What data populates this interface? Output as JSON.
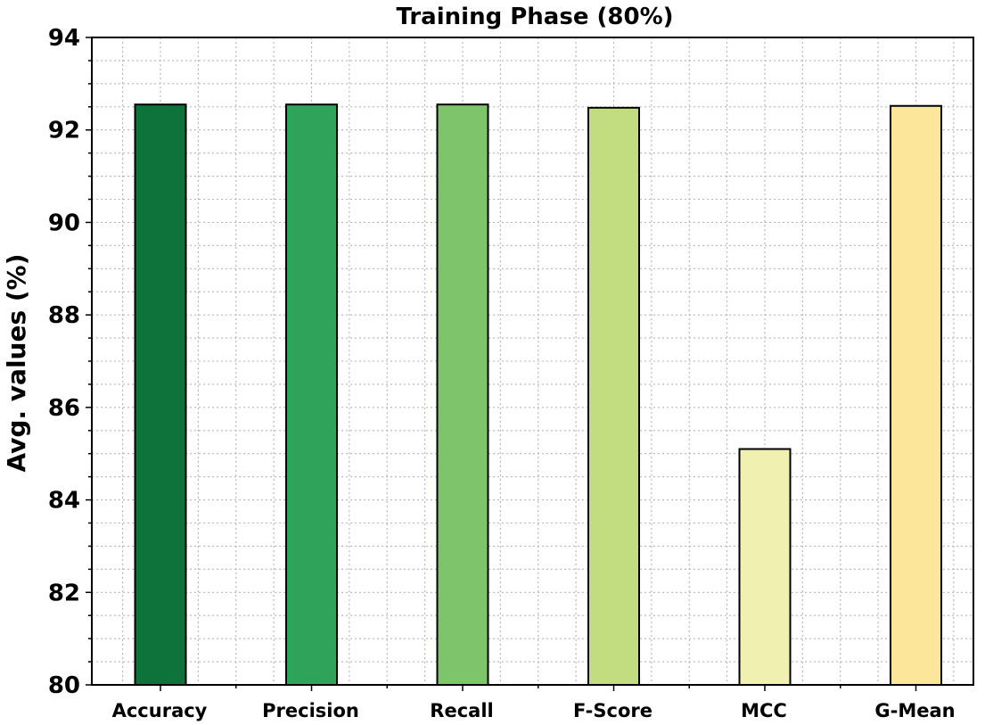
{
  "chart_data": {
    "type": "bar",
    "title": "Training Phase (80%)",
    "xlabel": "",
    "ylabel": "Avg. values (%)",
    "categories": [
      "Accuracy",
      "Precision",
      "Recall",
      "F-Score",
      "MCC",
      "G-Mean"
    ],
    "values": [
      92.55,
      92.55,
      92.55,
      92.48,
      85.1,
      92.52
    ],
    "colors": [
      "#0e733a",
      "#2fa35a",
      "#7ec46a",
      "#c2dc80",
      "#f0f0b0",
      "#fbe69a"
    ],
    "ylim": [
      80,
      94
    ],
    "yticks": [
      80,
      82,
      84,
      86,
      88,
      90,
      92,
      94
    ],
    "grid": true,
    "minor_grid": true,
    "legend": "none"
  }
}
